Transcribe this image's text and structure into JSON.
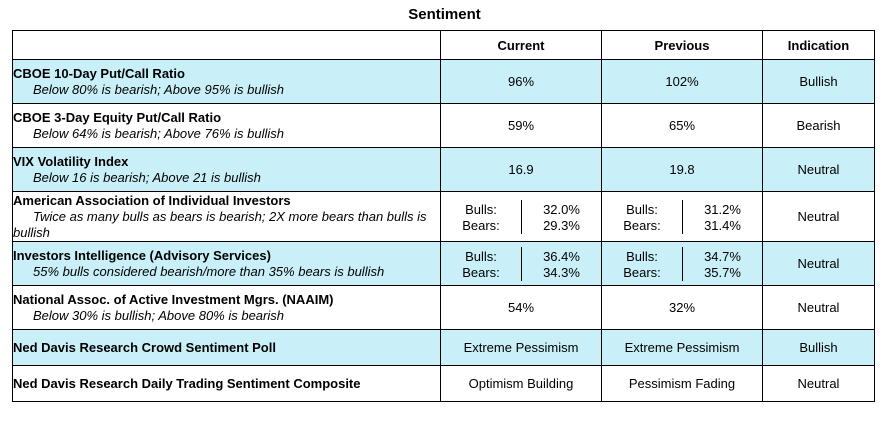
{
  "title": "Sentiment",
  "headers": {
    "current": "Current",
    "previous": "Previous",
    "indication": "Indication"
  },
  "rows": [
    {
      "name": "CBOE 10-Day Put/Call Ratio",
      "sub": "Below 80% is bearish; Above 95% is bullish",
      "current": "96%",
      "previous": "102%",
      "indication": "Bullish"
    },
    {
      "name": "CBOE 3-Day Equity Put/Call Ratio",
      "sub": "Below 64% is bearish; Above 76% is bullish",
      "current": "59%",
      "previous": "65%",
      "indication": "Bearish"
    },
    {
      "name": "VIX Volatility Index",
      "sub": "Below 16 is bearish; Above 21 is bullish",
      "current": "16.9",
      "previous": "19.8",
      "indication": "Neutral"
    },
    {
      "name": "American Association of Individual Investors",
      "sub": "Twice as many bulls as bears is bearish; 2X more bears than bulls is bullish",
      "current": {
        "labels": "Bulls:\nBears:",
        "values": "32.0%\n29.3%"
      },
      "previous": {
        "labels": "Bulls:\nBears:",
        "values": "31.2%\n31.4%"
      },
      "indication": "Neutral"
    },
    {
      "name": "Investors Intelligence (Advisory Services)",
      "sub": "55% bulls considered bearish/more than 35% bears is bullish",
      "current": {
        "labels": "Bulls:\nBears:",
        "values": "36.4%\n34.3%"
      },
      "previous": {
        "labels": "Bulls:\nBears:",
        "values": "34.7%\n35.7%"
      },
      "indication": "Neutral"
    },
    {
      "name": "National Assoc. of Active Investment Mgrs. (NAAIM)",
      "sub": "Below 30% is bullish; Above 80% is bearish",
      "current": "54%",
      "previous": "32%",
      "indication": "Neutral"
    },
    {
      "name": "Ned Davis Research Crowd Sentiment Poll",
      "current": "Extreme Pessimism",
      "previous": "Extreme Pessimism",
      "indication": "Bullish"
    },
    {
      "name": "Ned Davis Research Daily Trading Sentiment Composite",
      "current": "Optimism Building",
      "previous": "Pessimism Fading",
      "indication": "Neutral"
    }
  ],
  "colors": {
    "shade": "#c9f0f8"
  }
}
